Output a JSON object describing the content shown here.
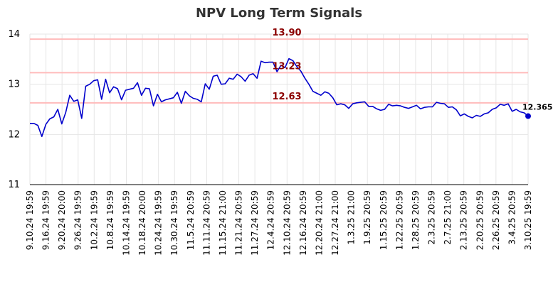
{
  "chart_data": {
    "type": "line",
    "title": "NPV Long Term Signals",
    "xlabel": "",
    "ylabel": "",
    "ylim": [
      11,
      14
    ],
    "yticks": [
      11,
      12,
      13,
      14
    ],
    "xticks": [
      "9.10.24 19:59",
      "9.16.24 19:59",
      "9.20.24 20:00",
      "9.26.24 19:59",
      "10.2.24 19:59",
      "10.8.24 19:59",
      "10.14.24 19:59",
      "10.18.24 20:00",
      "10.24.24 19:59",
      "10.30.24 19:59",
      "11.5.24 20:59",
      "11.11.24 20:59",
      "11.15.24 21:00",
      "11.21.24 20:59",
      "11.27.24 20:59",
      "12.4.24 20:59",
      "12.10.24 20:59",
      "12.16.24 20:59",
      "12.20.24 21:00",
      "12.27.24 21:00",
      "1.3.25 21:00",
      "1.9.25 20:59",
      "1.15.25 20:59",
      "1.22.25 20:59",
      "1.28.25 20:59",
      "2.3.25 20:59",
      "2.7.25 21:00",
      "2.13.25 20:59",
      "2.20.25 20:59",
      "2.26.25 20:59",
      "3.4.25 20:59",
      "3.10.25 19:59"
    ],
    "grid": true,
    "line_color": "#0000cc",
    "hline_color": "#ffbbbb",
    "hline_label_color": "#8b0000",
    "hlines": [
      {
        "value": 13.9,
        "label": "13.90"
      },
      {
        "value": 13.23,
        "label": "13.23"
      },
      {
        "value": 12.63,
        "label": "12.63"
      }
    ],
    "last_value_label": "12.365",
    "series": [
      {
        "values": [
          12.22,
          12.22,
          12.18,
          11.96,
          12.2,
          12.31,
          12.35,
          12.5,
          12.21,
          12.44,
          12.78,
          12.66,
          12.69,
          12.32,
          12.96,
          13.0,
          13.07,
          13.09,
          12.7,
          13.1,
          12.83,
          12.95,
          12.91,
          12.69,
          12.88,
          12.9,
          12.92,
          13.03,
          12.78,
          12.92,
          12.91,
          12.57,
          12.8,
          12.65,
          12.69,
          12.71,
          12.73,
          12.84,
          12.62,
          12.86,
          12.77,
          12.72,
          12.7,
          12.65,
          13.01,
          12.9,
          13.16,
          13.18,
          13.0,
          13.01,
          13.12,
          13.1,
          13.2,
          13.15,
          13.06,
          13.18,
          13.21,
          13.12,
          13.46,
          13.43,
          13.44,
          13.44,
          13.25,
          13.38,
          13.33,
          13.51,
          13.47,
          13.35,
          13.26,
          13.12,
          13.0,
          12.86,
          12.82,
          12.78,
          12.85,
          12.82,
          12.73,
          12.59,
          12.61,
          12.59,
          12.52,
          12.61,
          12.63,
          12.64,
          12.65,
          12.56,
          12.56,
          12.51,
          12.48,
          12.5,
          12.6,
          12.57,
          12.58,
          12.57,
          12.54,
          12.52,
          12.55,
          12.58,
          12.51,
          12.54,
          12.55,
          12.55,
          12.64,
          12.62,
          12.61,
          12.54,
          12.55,
          12.49,
          12.37,
          12.41,
          12.36,
          12.33,
          12.38,
          12.36,
          12.41,
          12.43,
          12.5,
          12.53,
          12.6,
          12.58,
          12.61,
          12.46,
          12.5,
          12.45,
          12.43,
          12.365
        ]
      }
    ]
  }
}
